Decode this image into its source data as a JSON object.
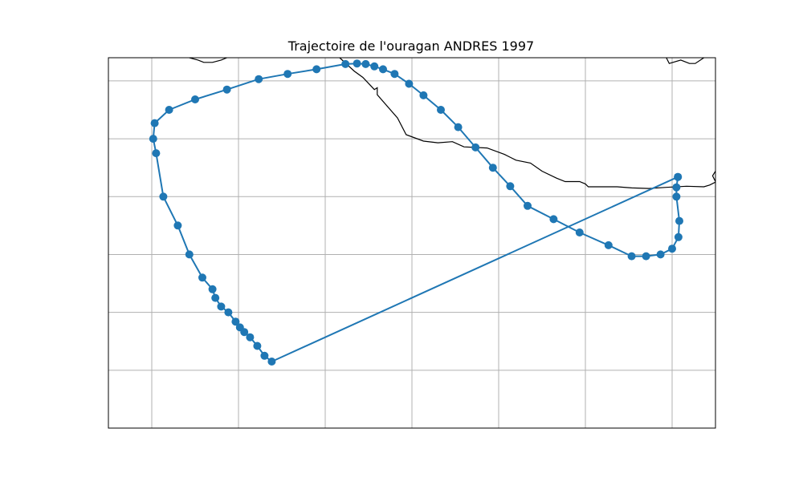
{
  "map": {
    "title": "Trajectoire de l'ouragan ANDRES 1997",
    "projection": "PlateCarree",
    "extent": {
      "lon": [
        -106.5,
        -85.5
      ],
      "lat": [
        1.0,
        7.4
      ]
    },
    "gridlines": {
      "lon": [
        -105,
        -102,
        -99,
        -96,
        -93,
        -90,
        -87
      ],
      "lat": [
        2,
        3,
        4,
        5,
        6,
        7
      ],
      "color": "#b0b0b0"
    },
    "coastline_color": "#000000",
    "track_color": "#1f77b4",
    "coastline": [
      [
        [
          -103.7,
          7.4
        ],
        [
          -103.4,
          7.36
        ],
        [
          -103.2,
          7.32
        ],
        [
          -102.9,
          7.32
        ],
        [
          -102.6,
          7.36
        ],
        [
          -102.4,
          7.4
        ]
      ],
      [
        [
          -98.5,
          7.4
        ],
        [
          -98.0,
          7.17
        ],
        [
          -97.7,
          7.06
        ],
        [
          -97.3,
          6.85
        ],
        [
          -97.2,
          6.88
        ],
        [
          -97.2,
          6.76
        ],
        [
          -96.5,
          6.36
        ],
        [
          -96.2,
          6.07
        ],
        [
          -95.6,
          5.96
        ],
        [
          -95.1,
          5.93
        ],
        [
          -94.6,
          5.95
        ],
        [
          -94.2,
          5.86
        ],
        [
          -93.4,
          5.84
        ],
        [
          -92.8,
          5.73
        ],
        [
          -92.4,
          5.63
        ],
        [
          -91.9,
          5.58
        ],
        [
          -91.5,
          5.44
        ],
        [
          -91.0,
          5.32
        ],
        [
          -90.7,
          5.26
        ],
        [
          -90.2,
          5.26
        ],
        [
          -90.0,
          5.22
        ],
        [
          -89.9,
          5.17
        ],
        [
          -89.6,
          5.17
        ],
        [
          -88.9,
          5.17
        ],
        [
          -88.4,
          5.15
        ],
        [
          -87.8,
          5.14
        ],
        [
          -87.2,
          5.16
        ],
        [
          -86.5,
          5.18
        ],
        [
          -85.9,
          5.17
        ],
        [
          -85.7,
          5.2
        ],
        [
          -85.5,
          5.25
        ]
      ],
      [
        [
          -87.2,
          7.4
        ],
        [
          -87.1,
          7.3
        ],
        [
          -86.7,
          7.36
        ],
        [
          -86.4,
          7.3
        ],
        [
          -86.2,
          7.3
        ],
        [
          -85.9,
          7.4
        ]
      ],
      [
        [
          -85.5,
          5.44
        ],
        [
          -85.6,
          5.36
        ],
        [
          -85.5,
          5.26
        ]
      ]
    ],
    "track": [
      [
        -86.8,
        5.34
      ],
      [
        -86.85,
        5.16
      ],
      [
        -86.85,
        5.0
      ],
      [
        -86.75,
        4.58
      ],
      [
        -86.78,
        4.3
      ],
      [
        -87.0,
        4.1
      ],
      [
        -87.4,
        4.0
      ],
      [
        -87.9,
        3.97
      ],
      [
        -88.4,
        3.97
      ],
      [
        -89.2,
        4.16
      ],
      [
        -90.2,
        4.38
      ],
      [
        -91.1,
        4.61
      ],
      [
        -92.0,
        4.84
      ],
      [
        -92.6,
        5.18
      ],
      [
        -93.2,
        5.5
      ],
      [
        -93.8,
        5.85
      ],
      [
        -94.4,
        6.2
      ],
      [
        -95.0,
        6.5
      ],
      [
        -95.6,
        6.75
      ],
      [
        -96.1,
        6.95
      ],
      [
        -96.6,
        7.12
      ],
      [
        -97.0,
        7.2
      ],
      [
        -97.3,
        7.25
      ],
      [
        -97.6,
        7.29
      ],
      [
        -97.9,
        7.3
      ],
      [
        -98.3,
        7.29
      ],
      [
        -99.3,
        7.2
      ],
      [
        -100.3,
        7.12
      ],
      [
        -101.3,
        7.03
      ],
      [
        -102.4,
        6.85
      ],
      [
        -103.5,
        6.68
      ],
      [
        -104.4,
        6.5
      ],
      [
        -104.9,
        6.27
      ],
      [
        -104.95,
        6.0
      ],
      [
        -104.85,
        5.75
      ],
      [
        -104.6,
        5.0
      ],
      [
        -104.1,
        4.5
      ],
      [
        -103.7,
        4.0
      ],
      [
        -103.25,
        3.6
      ],
      [
        -102.9,
        3.4
      ],
      [
        -102.8,
        3.25
      ],
      [
        -102.6,
        3.1
      ],
      [
        -102.35,
        3.0
      ],
      [
        -102.1,
        2.84
      ],
      [
        -101.95,
        2.74
      ],
      [
        -101.8,
        2.66
      ],
      [
        -101.6,
        2.57
      ],
      [
        -101.35,
        2.42
      ],
      [
        -101.1,
        2.25
      ],
      [
        -100.85,
        2.15
      ],
      [
        -86.8,
        5.34
      ]
    ]
  }
}
